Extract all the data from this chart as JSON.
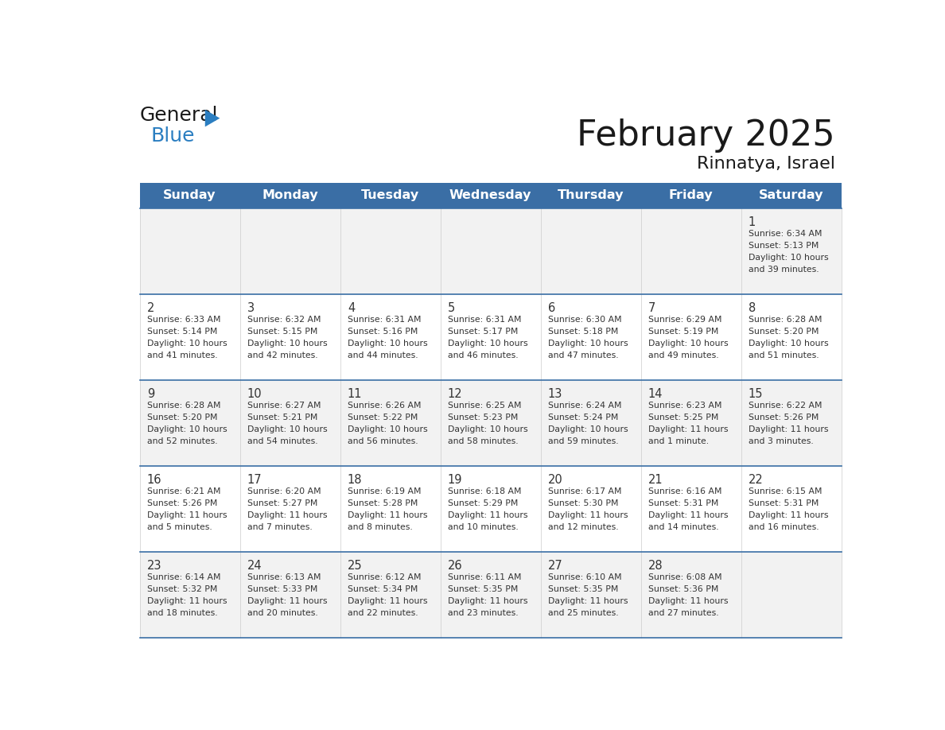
{
  "title": "February 2025",
  "subtitle": "Rinnatya, Israel",
  "days_of_week": [
    "Sunday",
    "Monday",
    "Tuesday",
    "Wednesday",
    "Thursday",
    "Friday",
    "Saturday"
  ],
  "header_bg": "#3A6EA5",
  "header_text": "#FFFFFF",
  "cell_bg_odd": "#F2F2F2",
  "cell_bg_even": "#FFFFFF",
  "line_color": "#3A6EA5",
  "text_color": "#333333",
  "calendar": [
    [
      null,
      null,
      null,
      null,
      null,
      null,
      {
        "day": 1,
        "sunrise": "6:34 AM",
        "sunset": "5:13 PM",
        "daylight": "10 hours and 39 minutes."
      }
    ],
    [
      {
        "day": 2,
        "sunrise": "6:33 AM",
        "sunset": "5:14 PM",
        "daylight": "10 hours and 41 minutes."
      },
      {
        "day": 3,
        "sunrise": "6:32 AM",
        "sunset": "5:15 PM",
        "daylight": "10 hours and 42 minutes."
      },
      {
        "day": 4,
        "sunrise": "6:31 AM",
        "sunset": "5:16 PM",
        "daylight": "10 hours and 44 minutes."
      },
      {
        "day": 5,
        "sunrise": "6:31 AM",
        "sunset": "5:17 PM",
        "daylight": "10 hours and 46 minutes."
      },
      {
        "day": 6,
        "sunrise": "6:30 AM",
        "sunset": "5:18 PM",
        "daylight": "10 hours and 47 minutes."
      },
      {
        "day": 7,
        "sunrise": "6:29 AM",
        "sunset": "5:19 PM",
        "daylight": "10 hours and 49 minutes."
      },
      {
        "day": 8,
        "sunrise": "6:28 AM",
        "sunset": "5:20 PM",
        "daylight": "10 hours and 51 minutes."
      }
    ],
    [
      {
        "day": 9,
        "sunrise": "6:28 AM",
        "sunset": "5:20 PM",
        "daylight": "10 hours and 52 minutes."
      },
      {
        "day": 10,
        "sunrise": "6:27 AM",
        "sunset": "5:21 PM",
        "daylight": "10 hours and 54 minutes."
      },
      {
        "day": 11,
        "sunrise": "6:26 AM",
        "sunset": "5:22 PM",
        "daylight": "10 hours and 56 minutes."
      },
      {
        "day": 12,
        "sunrise": "6:25 AM",
        "sunset": "5:23 PM",
        "daylight": "10 hours and 58 minutes."
      },
      {
        "day": 13,
        "sunrise": "6:24 AM",
        "sunset": "5:24 PM",
        "daylight": "10 hours and 59 minutes."
      },
      {
        "day": 14,
        "sunrise": "6:23 AM",
        "sunset": "5:25 PM",
        "daylight": "11 hours and 1 minute."
      },
      {
        "day": 15,
        "sunrise": "6:22 AM",
        "sunset": "5:26 PM",
        "daylight": "11 hours and 3 minutes."
      }
    ],
    [
      {
        "day": 16,
        "sunrise": "6:21 AM",
        "sunset": "5:26 PM",
        "daylight": "11 hours and 5 minutes."
      },
      {
        "day": 17,
        "sunrise": "6:20 AM",
        "sunset": "5:27 PM",
        "daylight": "11 hours and 7 minutes."
      },
      {
        "day": 18,
        "sunrise": "6:19 AM",
        "sunset": "5:28 PM",
        "daylight": "11 hours and 8 minutes."
      },
      {
        "day": 19,
        "sunrise": "6:18 AM",
        "sunset": "5:29 PM",
        "daylight": "11 hours and 10 minutes."
      },
      {
        "day": 20,
        "sunrise": "6:17 AM",
        "sunset": "5:30 PM",
        "daylight": "11 hours and 12 minutes."
      },
      {
        "day": 21,
        "sunrise": "6:16 AM",
        "sunset": "5:31 PM",
        "daylight": "11 hours and 14 minutes."
      },
      {
        "day": 22,
        "sunrise": "6:15 AM",
        "sunset": "5:31 PM",
        "daylight": "11 hours and 16 minutes."
      }
    ],
    [
      {
        "day": 23,
        "sunrise": "6:14 AM",
        "sunset": "5:32 PM",
        "daylight": "11 hours and 18 minutes."
      },
      {
        "day": 24,
        "sunrise": "6:13 AM",
        "sunset": "5:33 PM",
        "daylight": "11 hours and 20 minutes."
      },
      {
        "day": 25,
        "sunrise": "6:12 AM",
        "sunset": "5:34 PM",
        "daylight": "11 hours and 22 minutes."
      },
      {
        "day": 26,
        "sunrise": "6:11 AM",
        "sunset": "5:35 PM",
        "daylight": "11 hours and 23 minutes."
      },
      {
        "day": 27,
        "sunrise": "6:10 AM",
        "sunset": "5:35 PM",
        "daylight": "11 hours and 25 minutes."
      },
      {
        "day": 28,
        "sunrise": "6:08 AM",
        "sunset": "5:36 PM",
        "daylight": "11 hours and 27 minutes."
      },
      null
    ]
  ],
  "logo_general_color": "#1a1a1a",
  "logo_blue_color": "#2B7EC1",
  "logo_triangle_color": "#2B7EC1"
}
